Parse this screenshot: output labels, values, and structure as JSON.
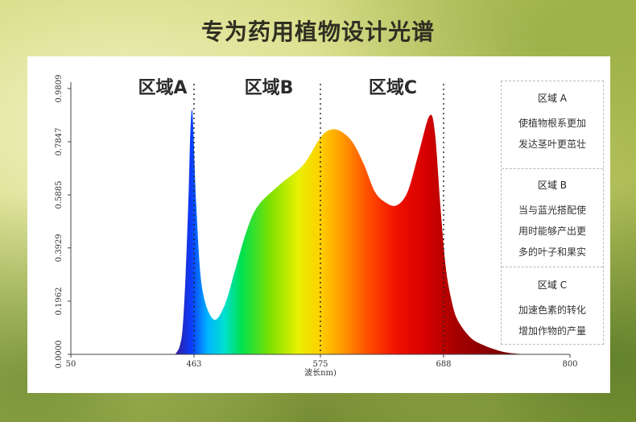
{
  "page": {
    "heading": "专为药用植物设计光谱"
  },
  "zones": [
    {
      "label": "区域A",
      "title": "区域 A",
      "lines": [
        "使植物根系更加",
        "发达茎叶更茁壮"
      ]
    },
    {
      "label": "区域B",
      "title": "区域 B",
      "lines": [
        "当与蓝光搭配使",
        "用时能够产出更",
        "多的叶子和果实"
      ]
    },
    {
      "label": "区域C",
      "title": "区域 C",
      "lines": [
        "加速色素的转化",
        "增加作物的产量"
      ]
    }
  ],
  "chart_data": {
    "type": "area",
    "xlabel": "波长nm)",
    "ylabel": "",
    "x_ticks": [
      50,
      463,
      575,
      688,
      800
    ],
    "y_ticks": [
      "0.0000",
      "0.1962",
      "0.3929",
      "0.5885",
      "0.7847",
      "0.9809"
    ],
    "ylim": [
      0,
      0.9809
    ],
    "dividers": [
      463,
      575,
      688
    ],
    "series": [
      {
        "x": [
          400,
          415,
          425,
          435,
          445,
          450,
          455,
          460,
          465,
          470,
          480,
          490,
          500,
          510,
          520,
          540,
          560,
          575,
          585,
          595,
          605,
          615,
          625,
          635,
          645,
          655,
          665,
          675,
          680,
          685,
          690,
          695,
          700,
          710,
          720,
          740,
          760
        ],
        "y": [
          0.0,
          0.03,
          0.1,
          0.3,
          0.6,
          0.8,
          0.9,
          0.85,
          0.55,
          0.25,
          0.13,
          0.18,
          0.32,
          0.46,
          0.55,
          0.63,
          0.7,
          0.8,
          0.83,
          0.82,
          0.78,
          0.7,
          0.6,
          0.56,
          0.55,
          0.6,
          0.74,
          0.88,
          0.82,
          0.55,
          0.32,
          0.2,
          0.13,
          0.07,
          0.04,
          0.01,
          0.0
        ]
      }
    ],
    "grid": false,
    "legend": "right"
  }
}
